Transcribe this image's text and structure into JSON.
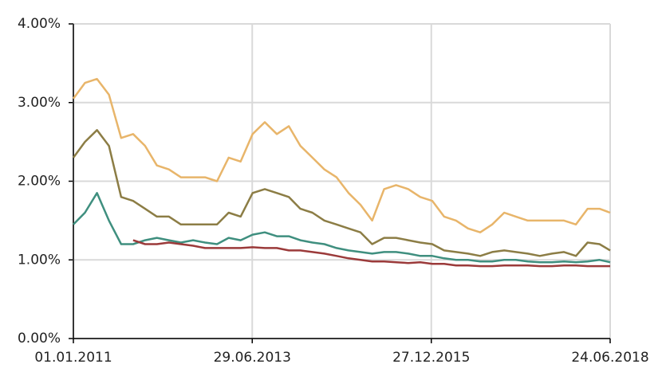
{
  "chart_data": {
    "type": "line",
    "x": [
      "01.01.2011",
      "01.03.2011",
      "01.05.2011",
      "01.07.2011",
      "01.09.2011",
      "01.11.2011",
      "01.01.2012",
      "01.03.2012",
      "01.05.2012",
      "01.07.2012",
      "01.09.2012",
      "01.11.2012",
      "01.01.2013",
      "01.03.2013",
      "01.05.2013",
      "01.07.2013",
      "01.09.2013",
      "01.11.2013",
      "01.01.2014",
      "01.03.2014",
      "01.05.2014",
      "01.07.2014",
      "01.09.2014",
      "01.11.2014",
      "01.01.2015",
      "01.03.2015",
      "01.05.2015",
      "01.07.2015",
      "01.09.2015",
      "01.11.2015",
      "01.01.2016",
      "01.03.2016",
      "01.05.2016",
      "01.07.2016",
      "01.09.2016",
      "01.11.2016",
      "01.01.2017",
      "01.03.2017",
      "01.05.2017",
      "01.07.2017",
      "01.09.2017",
      "01.11.2017",
      "01.01.2018",
      "01.03.2018",
      "01.05.2018",
      "24.06.2018"
    ],
    "series": [
      {
        "color": "#e8b56a",
        "values": [
          3.05,
          3.25,
          3.3,
          3.1,
          2.55,
          2.6,
          2.45,
          2.2,
          2.15,
          2.05,
          2.05,
          2.05,
          2.0,
          2.3,
          2.25,
          2.6,
          2.75,
          2.6,
          2.7,
          2.45,
          2.3,
          2.15,
          2.05,
          1.85,
          1.7,
          1.5,
          1.9,
          1.95,
          1.9,
          1.8,
          1.75,
          1.55,
          1.5,
          1.4,
          1.35,
          1.45,
          1.6,
          1.55,
          1.5,
          1.5,
          1.5,
          1.5,
          1.45,
          1.65,
          1.65,
          1.6
        ]
      },
      {
        "color": "#8c7d45",
        "values": [
          2.3,
          2.5,
          2.65,
          2.45,
          1.8,
          1.75,
          1.65,
          1.55,
          1.55,
          1.45,
          1.45,
          1.45,
          1.45,
          1.6,
          1.55,
          1.85,
          1.9,
          1.85,
          1.8,
          1.65,
          1.6,
          1.5,
          1.45,
          1.4,
          1.35,
          1.2,
          1.28,
          1.28,
          1.25,
          1.22,
          1.2,
          1.12,
          1.1,
          1.08,
          1.05,
          1.1,
          1.12,
          1.1,
          1.08,
          1.05,
          1.08,
          1.1,
          1.05,
          1.22,
          1.2,
          1.12
        ]
      },
      {
        "color": "#3f8f7f",
        "values": [
          1.45,
          1.6,
          1.85,
          1.5,
          1.2,
          1.2,
          1.25,
          1.28,
          1.25,
          1.22,
          1.25,
          1.22,
          1.2,
          1.28,
          1.25,
          1.32,
          1.35,
          1.3,
          1.3,
          1.25,
          1.22,
          1.2,
          1.15,
          1.12,
          1.1,
          1.08,
          1.1,
          1.1,
          1.08,
          1.05,
          1.05,
          1.02,
          1.0,
          1.0,
          0.98,
          0.98,
          1.0,
          1.0,
          0.98,
          0.97,
          0.97,
          0.98,
          0.97,
          0.98,
          1.0,
          0.97
        ]
      },
      {
        "color": "#9b3a3a",
        "values": [
          null,
          null,
          null,
          null,
          null,
          1.25,
          1.2,
          1.2,
          1.22,
          1.2,
          1.18,
          1.15,
          1.15,
          1.15,
          1.15,
          1.16,
          1.15,
          1.15,
          1.12,
          1.12,
          1.1,
          1.08,
          1.05,
          1.02,
          1.0,
          0.98,
          0.98,
          0.97,
          0.96,
          0.97,
          0.95,
          0.95,
          0.93,
          0.93,
          0.92,
          0.92,
          0.93,
          0.93,
          0.93,
          0.92,
          0.92,
          0.93,
          0.93,
          0.92,
          0.92,
          0.92
        ]
      }
    ],
    "xlim": [
      "01.01.2011",
      "24.06.2018"
    ],
    "xticks": [
      "01.01.2011",
      "29.06.2013",
      "27.12.2015",
      "24.06.2018"
    ],
    "ylim": [
      0,
      4
    ],
    "yticks": [
      {
        "value": 0,
        "label": "0.00%"
      },
      {
        "value": 1,
        "label": "1.00%"
      },
      {
        "value": 2,
        "label": "2.00%"
      },
      {
        "value": 3,
        "label": "3.00%"
      },
      {
        "value": 4,
        "label": "4.00%"
      }
    ],
    "grid": true
  }
}
